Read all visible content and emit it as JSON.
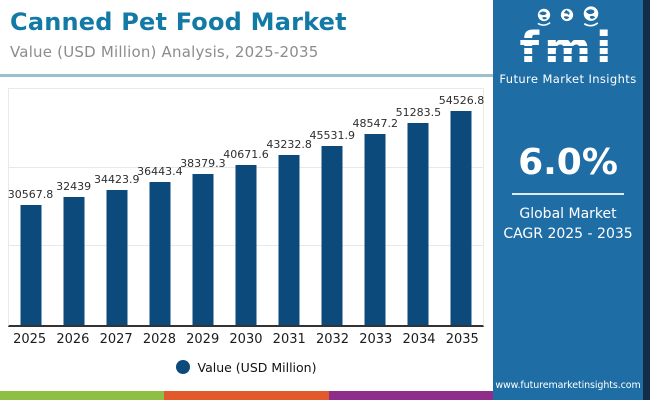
{
  "header": {
    "title": "Canned Pet Food Market",
    "subtitle": "Value (USD Million) Analysis, 2025-2035"
  },
  "chart_data": {
    "type": "bar",
    "title": "Canned Pet Food Market",
    "xlabel": "",
    "ylabel": "Value (USD Million)",
    "categories": [
      "2025",
      "2026",
      "2027",
      "2028",
      "2029",
      "2030",
      "2031",
      "2032",
      "2033",
      "2034",
      "2035"
    ],
    "values": [
      30567.8,
      32439,
      34423.9,
      36443.4,
      38379.3,
      40671.6,
      43232.8,
      45531.9,
      48547.2,
      51283.5,
      54526.8
    ],
    "bar_labels": [
      "30567.8",
      "32439",
      "34423.9",
      "36443.4",
      "38379.3",
      "40671.6",
      "43232.8",
      "45531.9",
      "48547.2",
      "51283.5",
      "54526.8"
    ],
    "legend": "Value (USD Million)",
    "legend_position": "bottom",
    "ylim": [
      0,
      60000
    ],
    "gridlines": [
      20000,
      40000
    ],
    "grid": "horizontal-only",
    "bar_color": "#0d4a7c"
  },
  "sidebar": {
    "logo_text": "fmi",
    "logo_subtext": "Future Market Insights",
    "cagr_value": "6.0%",
    "cagr_label_line1": "Global Market",
    "cagr_label_line2": "CAGR 2025 - 2035",
    "website": "www.futuremarketinsights.com"
  },
  "colors": {
    "title_accent": "#137aa6",
    "bar": "#0d4a7c",
    "sidebar_bg": "#1f6da5",
    "sidebar_edge": "#122c49",
    "header_divider": "#9dbecd",
    "strip_green": "#8cbf44",
    "strip_orange": "#e2592c",
    "strip_purple": "#8e2d8a"
  }
}
